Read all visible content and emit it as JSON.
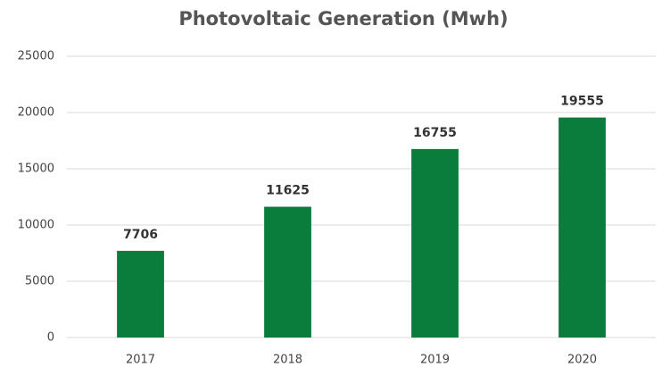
{
  "chart_data": {
    "type": "bar",
    "title": "Photovoltaic Generation (Mwh)",
    "categories": [
      "2017",
      "2018",
      "2019",
      "2020"
    ],
    "values": [
      7706,
      11625,
      16755,
      19555
    ],
    "color": "#0a7d3c",
    "ylim": [
      0,
      25000
    ],
    "yticks": [
      0,
      5000,
      10000,
      15000,
      20000,
      25000
    ],
    "grid": true
  }
}
